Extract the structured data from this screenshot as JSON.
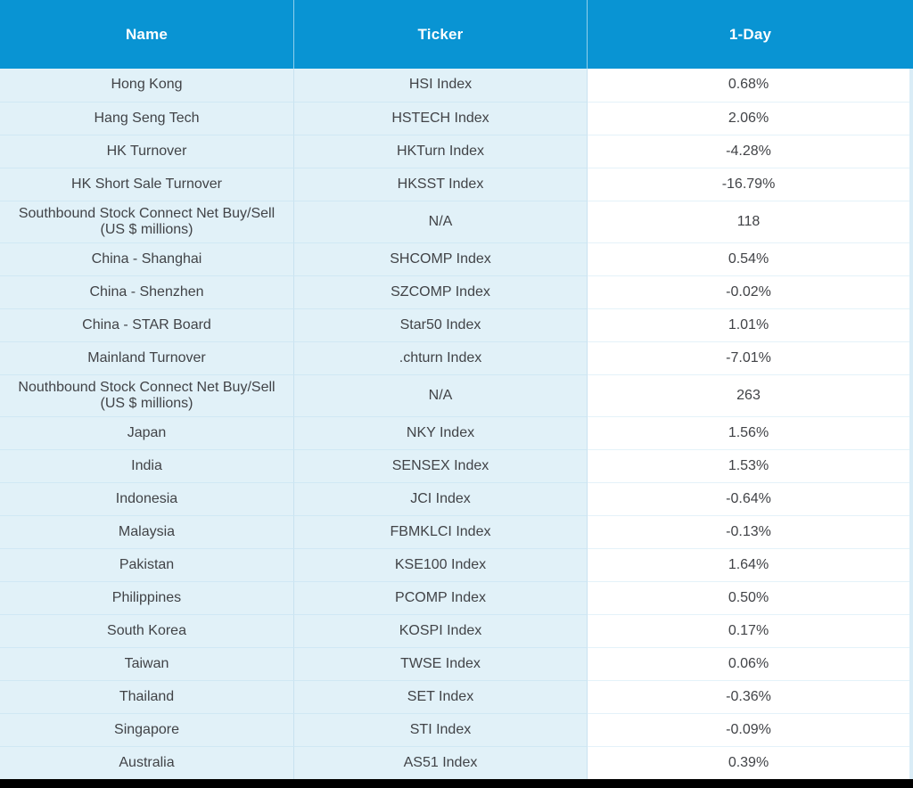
{
  "table": {
    "columns": {
      "name_label": "Name",
      "ticker_label": "Ticker",
      "one_day_label": "1-Day"
    },
    "rows": [
      {
        "name": "Hong Kong",
        "ticker": "HSI Index",
        "one_day": "0.68%",
        "tall": false
      },
      {
        "name": "Hang Seng Tech",
        "ticker": "HSTECH Index",
        "one_day": "2.06%",
        "tall": false
      },
      {
        "name": "HK Turnover",
        "ticker": "HKTurn Index",
        "one_day": "-4.28%",
        "tall": false
      },
      {
        "name": "HK Short Sale Turnover",
        "ticker": "HKSST Index",
        "one_day": "-16.79%",
        "tall": false
      },
      {
        "name": "Southbound Stock Connect Net Buy/Sell (US $ millions)",
        "ticker": "N/A",
        "one_day": "118",
        "tall": true
      },
      {
        "name": "China - Shanghai",
        "ticker": "SHCOMP Index",
        "one_day": "0.54%",
        "tall": false
      },
      {
        "name": "China - Shenzhen",
        "ticker": "SZCOMP Index",
        "one_day": "-0.02%",
        "tall": false
      },
      {
        "name": "China - STAR Board",
        "ticker": "Star50 Index",
        "one_day": "1.01%",
        "tall": false
      },
      {
        "name": "Mainland Turnover",
        "ticker": ".chturn Index",
        "one_day": "-7.01%",
        "tall": false
      },
      {
        "name": "Nouthbound Stock Connect Net Buy/Sell (US $ millions)",
        "ticker": "N/A",
        "one_day": "263",
        "tall": true
      },
      {
        "name": "Japan",
        "ticker": "NKY Index",
        "one_day": "1.56%",
        "tall": false
      },
      {
        "name": "India",
        "ticker": "SENSEX Index",
        "one_day": "1.53%",
        "tall": false
      },
      {
        "name": "Indonesia",
        "ticker": "JCI Index",
        "one_day": "-0.64%",
        "tall": false
      },
      {
        "name": "Malaysia",
        "ticker": "FBMKLCI Index",
        "one_day": "-0.13%",
        "tall": false
      },
      {
        "name": "Pakistan",
        "ticker": "KSE100 Index",
        "one_day": "1.64%",
        "tall": false
      },
      {
        "name": "Philippines",
        "ticker": "PCOMP Index",
        "one_day": "0.50%",
        "tall": false
      },
      {
        "name": "South Korea",
        "ticker": "KOSPI Index",
        "one_day": "0.17%",
        "tall": false
      },
      {
        "name": "Taiwan",
        "ticker": "TWSE Index",
        "one_day": "0.06%",
        "tall": false
      },
      {
        "name": "Thailand",
        "ticker": "SET Index",
        "one_day": "-0.36%",
        "tall": false
      },
      {
        "name": "Singapore",
        "ticker": "STI Index",
        "one_day": "-0.09%",
        "tall": false
      },
      {
        "name": "Australia",
        "ticker": "AS51 Index",
        "one_day": "0.39%",
        "tall": false
      }
    ]
  },
  "colors": {
    "header_bg": "#0994D3",
    "cell_bg": "#E1F1F8",
    "one_day_bg": "#FFFFFF",
    "grid_line_blue": "#D0E8F4",
    "grid_line_pale": "#E4F2F9",
    "text": "#414347",
    "header_text": "#FFFFFF",
    "right_strip": "#D9ECF6",
    "bottom_bar": "#000000"
  }
}
